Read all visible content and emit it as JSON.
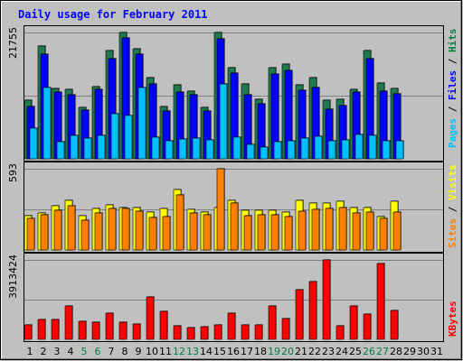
{
  "chart_data": {
    "type": "bar",
    "title": "Daily usage for February 2011",
    "days": [
      "1",
      "2",
      "3",
      "4",
      "5",
      "6",
      "7",
      "8",
      "9",
      "10",
      "11",
      "12",
      "13",
      "14",
      "15",
      "16",
      "17",
      "18",
      "19",
      "20",
      "21",
      "22",
      "23",
      "24",
      "25",
      "26",
      "27",
      "28",
      "29",
      "30",
      "31"
    ],
    "weekend_days": [
      "5",
      "6",
      "12",
      "13",
      "19",
      "20",
      "26",
      "27"
    ],
    "panels": [
      {
        "name": "hits",
        "ymax": 21755,
        "ymax_label": "21755",
        "labels": [
          {
            "text": "Pages",
            "color": "#00c0ff"
          },
          {
            "text": " / ",
            "color": "#000000"
          },
          {
            "text": "Files",
            "color": "#0000ff"
          },
          {
            "text": " / ",
            "color": "#000000"
          },
          {
            "text": "Hits",
            "color": "#008040"
          }
        ],
        "series": [
          {
            "name": "Hits",
            "color": "#1f7a4f",
            "values": [
              10060,
              19436,
              12150,
              11960,
              8840,
              12480,
              18600,
              21755,
              18900,
              14000,
              8970,
              12700,
              11650,
              8920,
              21755,
              15640,
              12900,
              10300,
              15700,
              16300,
              12780,
              14000,
              10120,
              10280,
              12000,
              18660,
              13000,
              12150,
              0,
              0,
              0
            ]
          },
          {
            "name": "Files",
            "color": "#0000ff",
            "values": [
              8960,
              18000,
              11470,
              11050,
              8430,
              11900,
              17300,
              20790,
              18000,
              12830,
              8190,
              11500,
              11030,
              8300,
              20650,
              14800,
              11000,
              9500,
              14530,
              15220,
              11880,
              12340,
              8600,
              9230,
              11480,
              17240,
              11650,
              11140,
              0,
              0,
              0
            ]
          },
          {
            "name": "Pages",
            "color": "#00c0ff",
            "values": [
              5280,
              12200,
              3000,
              4060,
              3540,
              4060,
              7720,
              7470,
              12280,
              3800,
              3170,
              3450,
              3520,
              3240,
              12820,
              3800,
              2500,
              2000,
              3020,
              3100,
              3500,
              3940,
              3150,
              3330,
              4260,
              4000,
              3160,
              3160,
              0,
              0,
              0
            ]
          }
        ]
      },
      {
        "name": "visits",
        "ymax": 593,
        "ymax_label": "593",
        "labels": [
          {
            "text": "Sites",
            "color": "#ff8000"
          },
          {
            "text": " / ",
            "color": "#000000"
          },
          {
            "text": "Visits",
            "color": "#ffff00"
          }
        ],
        "series": [
          {
            "name": "Visits",
            "color": "#ffff00",
            "values": [
              250,
              270,
              320,
              360,
              250,
              300,
              330,
              310,
              310,
              275,
              305,
              440,
              295,
              275,
              310,
              365,
              290,
              290,
              290,
              280,
              360,
              340,
              340,
              355,
              310,
              310,
              245,
              355,
              0,
              0,
              0
            ]
          },
          {
            "name": "Sites",
            "color": "#ff8000",
            "values": [
              230,
              260,
              290,
              320,
              215,
              270,
              300,
              300,
              285,
              240,
              245,
              405,
              270,
              255,
              593,
              340,
              250,
              255,
              260,
              245,
              285,
              295,
              300,
              310,
              270,
              275,
              230,
              280,
              0,
              0,
              0
            ]
          }
        ]
      },
      {
        "name": "kbytes",
        "ymax": 3913424,
        "ymax_label": "3913424",
        "labels": [
          {
            "text": "KBytes",
            "color": "#ff0000"
          }
        ],
        "series": [
          {
            "name": "KBytes",
            "color": "#ff0000",
            "values": [
              730000,
              980000,
              980000,
              1650000,
              870000,
              830000,
              1290000,
              850000,
              740000,
              2080000,
              1400000,
              650000,
              580000,
              630000,
              720000,
              1310000,
              730000,
              730000,
              1650000,
              1010000,
              2460000,
              2850000,
              3913424,
              680000,
              1650000,
              1250000,
              3720000,
              1410000,
              0,
              0,
              0
            ]
          }
        ]
      }
    ]
  }
}
